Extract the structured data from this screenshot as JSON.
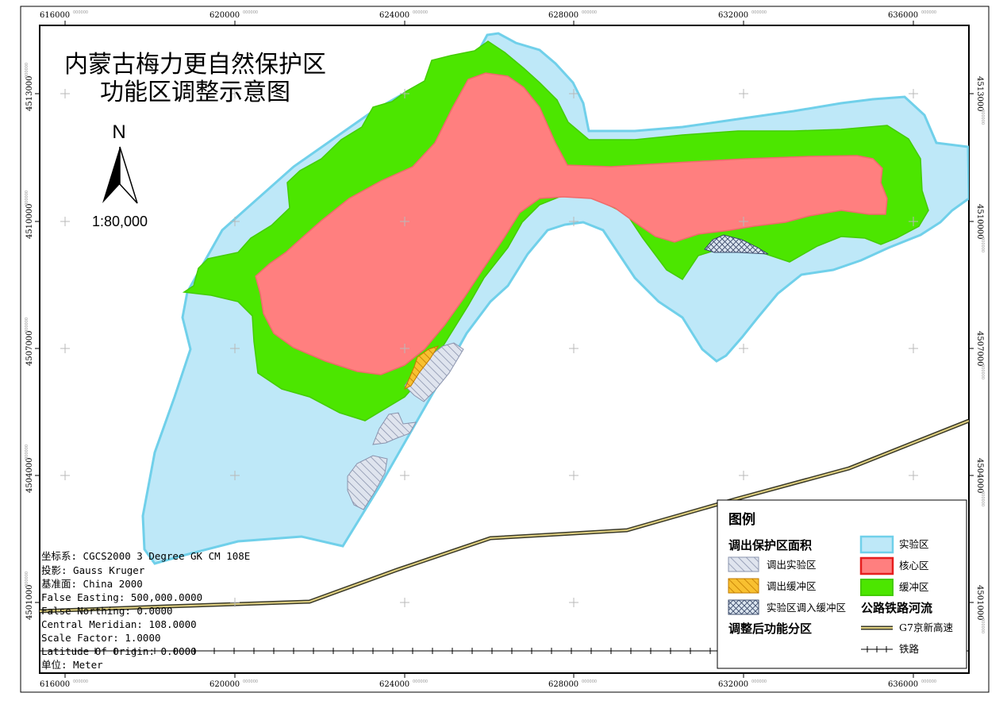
{
  "map": {
    "title_line1": "内蒙古梅力更自然保护区",
    "title_line2": "功能区调整示意图",
    "north_label": "N",
    "scale": "1:80,000",
    "x_ticks": [
      "616000",
      "620000",
      "624000",
      "628000",
      "632000",
      "636000"
    ],
    "x_tick_suffix": "000000",
    "y_ticks": [
      "4513000",
      "4510000",
      "4507000",
      "4504000",
      "4501000"
    ],
    "y_tick_suffix": "000000"
  },
  "info": {
    "coord_system": "坐标系: CGCS2000 3 Degree GK CM 108E",
    "projection": "投影: Gauss Kruger",
    "datum": "基准面: China 2000",
    "false_easting": "False Easting: 500,000.0000",
    "false_northing": "False Northing: 0.0000",
    "central_meridian": "Central Meridian: 108.0000",
    "scale_factor": "Scale Factor: 1.0000",
    "latitude_origin": "Latitude Of Origin: 0.0000",
    "unit": "单位: Meter"
  },
  "legend": {
    "title": "图例",
    "group_out": "调出保护区面积",
    "out_experimental": "调出实验区",
    "out_buffer": "调出缓冲区",
    "exp_to_buffer": "实验区调入缓冲区",
    "group_after": "调整后功能分区",
    "experimental": "实验区",
    "core": "核心区",
    "buffer": "缓冲区",
    "group_roads": "公路铁路河流",
    "highway": "G7京新高速",
    "railway": "铁路"
  },
  "colors": {
    "experimental_fill": "#bee8f8",
    "experimental_stroke": "#70d0ea",
    "buffer_fill": "#4ce600",
    "core_fill": "#ff7f7f",
    "core_stroke": "#e61e1e",
    "highway": "#e0d080"
  }
}
